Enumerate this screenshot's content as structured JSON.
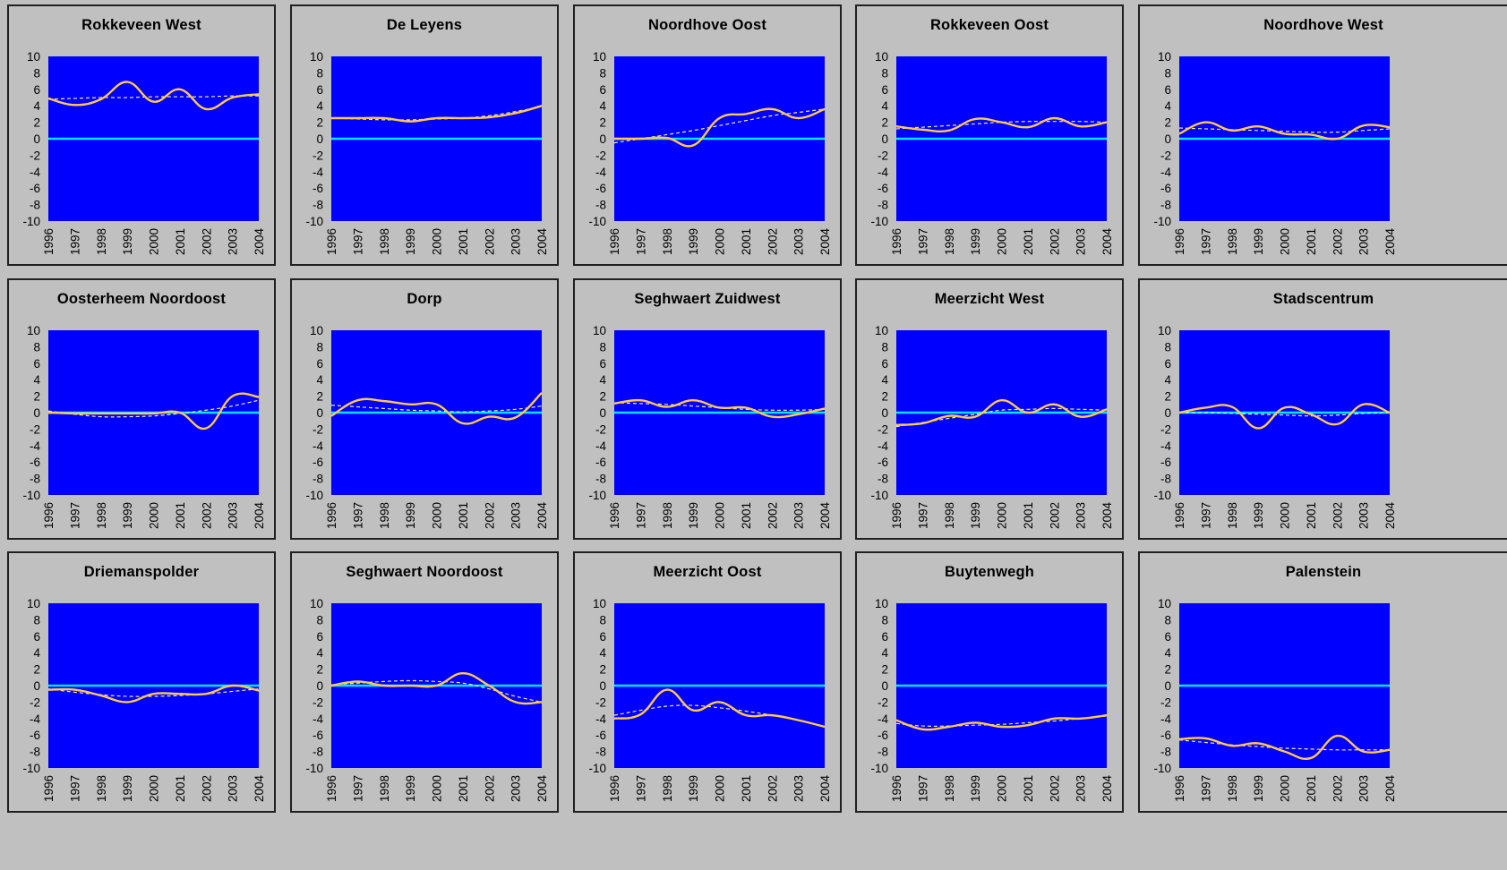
{
  "colors": {
    "background": "#c0c0c0",
    "plot_area": "#0000ff",
    "zero_line": "#00e5ff",
    "series_line": "#ffc94a",
    "trend_line": "#f3e6b4"
  },
  "chart_data": [
    {
      "type": "line",
      "title": "Rokkeveen West",
      "x": [
        1996,
        1997,
        1998,
        1999,
        2000,
        2001,
        2002,
        2003,
        2004
      ],
      "ylim": [
        -10,
        10
      ],
      "yticks": [
        10,
        8,
        6,
        4,
        2,
        0,
        -2,
        -4,
        -6,
        -8,
        -10
      ],
      "grid": false,
      "series": [
        {
          "values": [
            4.9,
            4.1,
            4.8,
            6.9,
            4.5,
            6.0,
            3.6,
            5.0,
            5.4
          ]
        },
        {
          "values": [
            4.8,
            4.9,
            5.0,
            5.0,
            5.1,
            5.1,
            5.1,
            5.2,
            5.2
          ]
        }
      ]
    },
    {
      "type": "line",
      "title": "De Leyens",
      "x": [
        1996,
        1997,
        1998,
        1999,
        2000,
        2001,
        2002,
        2003,
        2004
      ],
      "ylim": [
        -10,
        10
      ],
      "yticks": [
        10,
        8,
        6,
        4,
        2,
        0,
        -2,
        -4,
        -6,
        -8,
        -10
      ],
      "grid": false,
      "series": [
        {
          "values": [
            2.5,
            2.5,
            2.5,
            2.1,
            2.5,
            2.5,
            2.6,
            3.1,
            4.0
          ]
        },
        {
          "values": [
            2.5,
            2.4,
            2.3,
            2.3,
            2.4,
            2.5,
            2.8,
            3.3,
            3.9
          ]
        }
      ]
    },
    {
      "type": "line",
      "title": "Noordhove Oost",
      "x": [
        1996,
        1997,
        1998,
        1999,
        2000,
        2001,
        2002,
        2003,
        2004
      ],
      "ylim": [
        -10,
        10
      ],
      "yticks": [
        10,
        8,
        6,
        4,
        2,
        0,
        -2,
        -4,
        -6,
        -8,
        -10
      ],
      "grid": false,
      "series": [
        {
          "values": [
            0.0,
            0.0,
            0.1,
            -0.8,
            2.5,
            3.0,
            3.6,
            2.5,
            3.6
          ]
        },
        {
          "values": [
            -0.5,
            0.0,
            0.5,
            1.0,
            1.6,
            2.2,
            2.8,
            3.2,
            3.6
          ]
        }
      ]
    },
    {
      "type": "line",
      "title": "Rokkeveen Oost",
      "x": [
        1996,
        1997,
        1998,
        1999,
        2000,
        2001,
        2002,
        2003,
        2004
      ],
      "ylim": [
        -10,
        10
      ],
      "yticks": [
        10,
        8,
        6,
        4,
        2,
        0,
        -2,
        -4,
        -6,
        -8,
        -10
      ],
      "grid": false,
      "series": [
        {
          "values": [
            1.5,
            1.1,
            1.0,
            2.4,
            2.0,
            1.4,
            2.5,
            1.5,
            2.0
          ]
        },
        {
          "values": [
            1.2,
            1.4,
            1.6,
            1.8,
            2.0,
            2.1,
            2.1,
            2.1,
            2.0
          ]
        }
      ]
    },
    {
      "type": "line",
      "title": "Noordhove West",
      "x": [
        1996,
        1997,
        1998,
        1999,
        2000,
        2001,
        2002,
        2003,
        2004
      ],
      "ylim": [
        -10,
        10
      ],
      "yticks": [
        10,
        8,
        6,
        4,
        2,
        0,
        -2,
        -4,
        -6,
        -8,
        -10
      ],
      "grid": false,
      "series": [
        {
          "values": [
            0.6,
            2.0,
            1.0,
            1.5,
            0.6,
            0.5,
            0.0,
            1.6,
            1.4
          ]
        },
        {
          "values": [
            1.3,
            1.2,
            1.1,
            1.0,
            0.9,
            0.8,
            0.8,
            1.0,
            1.2
          ]
        }
      ]
    },
    {
      "type": "line",
      "title": "Oosterheem Noordoost",
      "x": [
        1996,
        1997,
        1998,
        1999,
        2000,
        2001,
        2002,
        2003,
        2004
      ],
      "ylim": [
        -10,
        10
      ],
      "yticks": [
        10,
        8,
        6,
        4,
        2,
        0,
        -2,
        -4,
        -6,
        -8,
        -10
      ],
      "grid": false,
      "series": [
        {
          "values": [
            0.0,
            -0.1,
            -0.1,
            -0.1,
            -0.1,
            0.0,
            -1.9,
            2.0,
            1.9
          ]
        },
        {
          "values": [
            0.2,
            -0.2,
            -0.5,
            -0.5,
            -0.4,
            -0.1,
            0.3,
            0.8,
            1.5
          ]
        }
      ]
    },
    {
      "type": "line",
      "title": "Dorp",
      "x": [
        1996,
        1997,
        1998,
        1999,
        2000,
        2001,
        2002,
        2003,
        2004
      ],
      "ylim": [
        -10,
        10
      ],
      "yticks": [
        10,
        8,
        6,
        4,
        2,
        0,
        -2,
        -4,
        -6,
        -8,
        -10
      ],
      "grid": false,
      "series": [
        {
          "values": [
            -0.4,
            1.5,
            1.4,
            1.0,
            1.0,
            -1.3,
            -0.5,
            -0.6,
            2.4
          ]
        },
        {
          "values": [
            0.9,
            0.7,
            0.5,
            0.3,
            0.2,
            0.1,
            0.2,
            0.4,
            0.8
          ]
        }
      ]
    },
    {
      "type": "line",
      "title": "Seghwaert Zuidwest",
      "x": [
        1996,
        1997,
        1998,
        1999,
        2000,
        2001,
        2002,
        2003,
        2004
      ],
      "ylim": [
        -10,
        10
      ],
      "yticks": [
        10,
        8,
        6,
        4,
        2,
        0,
        -2,
        -4,
        -6,
        -8,
        -10
      ],
      "grid": false,
      "series": [
        {
          "values": [
            1.1,
            1.5,
            0.7,
            1.5,
            0.6,
            0.6,
            -0.5,
            -0.2,
            0.5
          ]
        },
        {
          "values": [
            1.2,
            1.1,
            1.0,
            0.8,
            0.6,
            0.4,
            0.3,
            0.3,
            0.4
          ]
        }
      ]
    },
    {
      "type": "line",
      "title": "Meerzicht West",
      "x": [
        1996,
        1997,
        1998,
        1999,
        2000,
        2001,
        2002,
        2003,
        2004
      ],
      "ylim": [
        -10,
        10
      ],
      "yticks": [
        10,
        8,
        6,
        4,
        2,
        0,
        -2,
        -4,
        -6,
        -8,
        -10
      ],
      "grid": false,
      "series": [
        {
          "values": [
            -1.5,
            -1.3,
            -0.4,
            -0.5,
            1.5,
            0.0,
            1.0,
            -0.5,
            0.4
          ]
        },
        {
          "values": [
            -1.7,
            -1.2,
            -0.7,
            -0.2,
            0.3,
            0.4,
            0.5,
            0.4,
            0.3
          ]
        }
      ]
    },
    {
      "type": "line",
      "title": "Stadscentrum",
      "x": [
        1996,
        1997,
        1998,
        1999,
        2000,
        2001,
        2002,
        2003,
        2004
      ],
      "ylim": [
        -10,
        10
      ],
      "yticks": [
        10,
        8,
        6,
        4,
        2,
        0,
        -2,
        -4,
        -6,
        -8,
        -10
      ],
      "grid": false,
      "series": [
        {
          "values": [
            0.0,
            0.6,
            0.7,
            -1.9,
            0.6,
            -0.2,
            -1.4,
            1.0,
            0.0
          ]
        },
        {
          "values": [
            0.0,
            0.0,
            -0.1,
            -0.2,
            -0.3,
            -0.4,
            -0.3,
            -0.1,
            0.0
          ]
        }
      ]
    },
    {
      "type": "line",
      "title": "Driemanspolder",
      "x": [
        1996,
        1997,
        1998,
        1999,
        2000,
        2001,
        2002,
        2003,
        2004
      ],
      "ylim": [
        -10,
        10
      ],
      "yticks": [
        10,
        8,
        6,
        4,
        2,
        0,
        -2,
        -4,
        -6,
        -8,
        -10
      ],
      "grid": false,
      "series": [
        {
          "values": [
            -0.5,
            -0.5,
            -1.2,
            -2.0,
            -1.0,
            -1.0,
            -1.0,
            0.0,
            -0.6
          ]
        },
        {
          "values": [
            -0.4,
            -0.8,
            -1.1,
            -1.3,
            -1.3,
            -1.2,
            -1.0,
            -0.7,
            -0.4
          ]
        }
      ]
    },
    {
      "type": "line",
      "title": "Seghwaert Noordoost",
      "x": [
        1996,
        1997,
        1998,
        1999,
        2000,
        2001,
        2002,
        2003,
        2004
      ],
      "ylim": [
        -10,
        10
      ],
      "yticks": [
        10,
        8,
        6,
        4,
        2,
        0,
        -2,
        -4,
        -6,
        -8,
        -10
      ],
      "grid": false,
      "series": [
        {
          "values": [
            0.0,
            0.5,
            0.0,
            0.0,
            0.0,
            1.5,
            0.0,
            -2.0,
            -2.0
          ]
        },
        {
          "values": [
            0.1,
            0.3,
            0.5,
            0.6,
            0.5,
            0.3,
            -0.4,
            -1.3,
            -2.0
          ]
        }
      ]
    },
    {
      "type": "line",
      "title": "Meerzicht Oost",
      "x": [
        1996,
        1997,
        1998,
        1999,
        2000,
        2001,
        2002,
        2003,
        2004
      ],
      "ylim": [
        -10,
        10
      ],
      "yticks": [
        10,
        8,
        6,
        4,
        2,
        0,
        -2,
        -4,
        -6,
        -8,
        -10
      ],
      "grid": false,
      "series": [
        {
          "values": [
            -4.0,
            -3.5,
            -0.5,
            -3.0,
            -2.0,
            -3.6,
            -3.6,
            -4.2,
            -5.0
          ]
        },
        {
          "values": [
            -3.6,
            -3.0,
            -2.5,
            -2.4,
            -2.7,
            -3.1,
            -3.6,
            -4.2,
            -5.0
          ]
        }
      ]
    },
    {
      "type": "line",
      "title": "Buytenwegh",
      "x": [
        1996,
        1997,
        1998,
        1999,
        2000,
        2001,
        2002,
        2003,
        2004
      ],
      "ylim": [
        -10,
        10
      ],
      "yticks": [
        10,
        8,
        6,
        4,
        2,
        0,
        -2,
        -4,
        -6,
        -8,
        -10
      ],
      "grid": false,
      "series": [
        {
          "values": [
            -4.2,
            -5.3,
            -5.0,
            -4.5,
            -5.0,
            -4.8,
            -4.0,
            -4.0,
            -3.6
          ]
        },
        {
          "values": [
            -4.6,
            -4.9,
            -4.9,
            -4.8,
            -4.7,
            -4.5,
            -4.3,
            -4.0,
            -3.7
          ]
        }
      ]
    },
    {
      "type": "line",
      "title": "Palenstein",
      "x": [
        1996,
        1997,
        1998,
        1999,
        2000,
        2001,
        2002,
        2003,
        2004
      ],
      "ylim": [
        -10,
        10
      ],
      "yticks": [
        10,
        8,
        6,
        4,
        2,
        0,
        -2,
        -4,
        -6,
        -8,
        -10
      ],
      "grid": false,
      "series": [
        {
          "values": [
            -6.5,
            -6.4,
            -7.3,
            -7.0,
            -8.0,
            -8.8,
            -6.1,
            -8.0,
            -7.8
          ]
        },
        {
          "values": [
            -6.6,
            -6.9,
            -7.2,
            -7.4,
            -7.6,
            -7.7,
            -7.8,
            -7.8,
            -7.8
          ]
        }
      ]
    }
  ]
}
